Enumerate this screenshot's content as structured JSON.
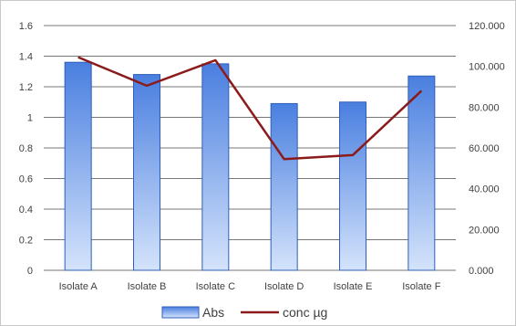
{
  "chart_data": {
    "type": "bar",
    "categories": [
      "Isolate A",
      "Isolate B",
      "Isolate C",
      "Isolate D",
      "Isolate E",
      "Isolate F"
    ],
    "series": [
      {
        "name": "Abs",
        "type": "bar",
        "axis": "left",
        "values": [
          1.36,
          1.28,
          1.35,
          1.09,
          1.1,
          1.27
        ],
        "color": "#6f9be8"
      },
      {
        "name": "conc µg",
        "type": "line",
        "axis": "right",
        "values": [
          104.5,
          90.5,
          103.0,
          54.5,
          56.5,
          88.0
        ],
        "color": "#8b1a1a"
      }
    ],
    "y_left": {
      "min": 0,
      "max": 1.6,
      "step": 0.2,
      "ticks": [
        "0",
        "0.2",
        "0.4",
        "0.6",
        "0.8",
        "1",
        "1.2",
        "1.4",
        "1.6"
      ]
    },
    "y_right": {
      "min": 0,
      "max": 120,
      "step": 20,
      "ticks": [
        "0.000",
        "20.000",
        "40.000",
        "60.000",
        "80.000",
        "100.000",
        "120.000"
      ]
    },
    "grid": true,
    "legend": {
      "position": "bottom",
      "labels": [
        "Abs",
        "conc µg"
      ]
    }
  }
}
